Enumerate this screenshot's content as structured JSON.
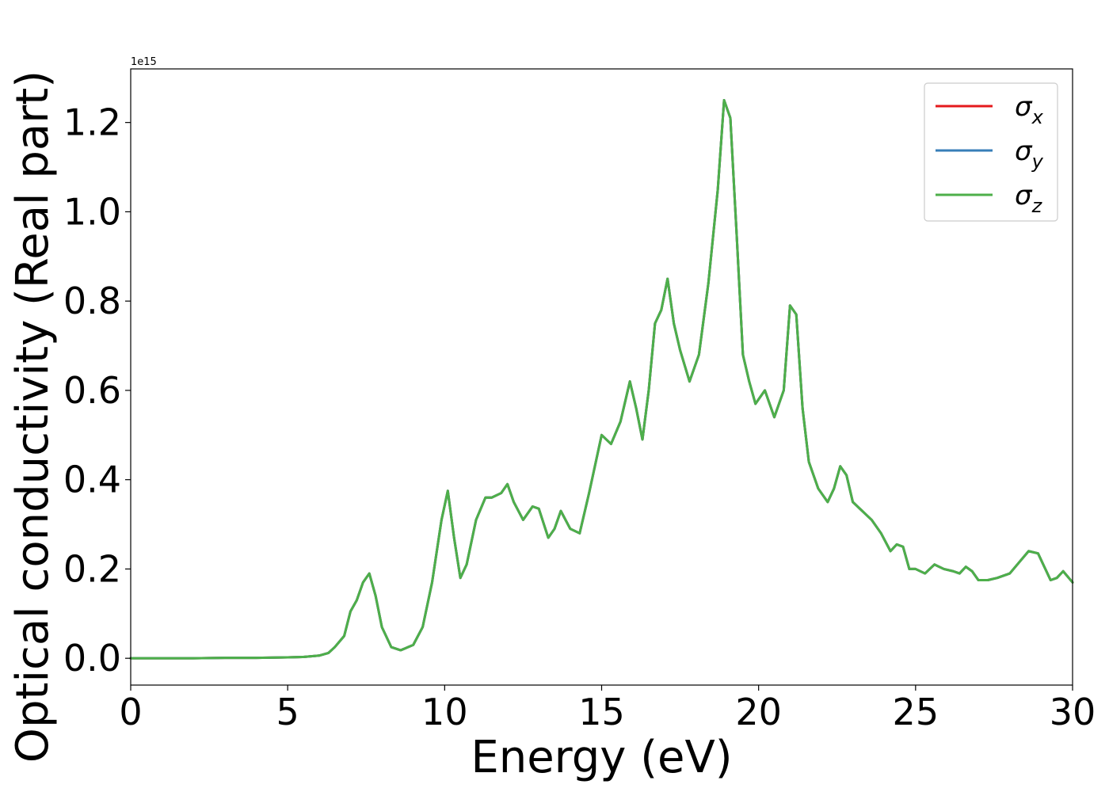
{
  "chart_data": {
    "type": "line",
    "title": "",
    "xlabel": "Energy (eV)",
    "ylabel": "Optical conductivity (Real part)",
    "y_offset_text": "1e15",
    "xlim": [
      0,
      30
    ],
    "ylim": [
      -0.06,
      1.32
    ],
    "y_multiplier": 1000000000000000.0,
    "xticks": [
      0,
      5,
      10,
      15,
      20,
      25,
      30
    ],
    "xtick_labels": [
      "0",
      "5",
      "10",
      "15",
      "20",
      "25",
      "30"
    ],
    "yticks": [
      0.0,
      0.2,
      0.4,
      0.6,
      0.8,
      1.0,
      1.2
    ],
    "ytick_labels": [
      "0.0",
      "0.2",
      "0.4",
      "0.6",
      "0.8",
      "1.0",
      "1.2"
    ],
    "grid": false,
    "legend_position": "top-right",
    "x": [
      0,
      1,
      2,
      3,
      4,
      5,
      5.5,
      6,
      6.3,
      6.5,
      6.8,
      7.0,
      7.2,
      7.4,
      7.6,
      7.8,
      8.0,
      8.3,
      8.6,
      9.0,
      9.3,
      9.6,
      9.9,
      10.1,
      10.3,
      10.5,
      10.7,
      11.0,
      11.3,
      11.5,
      11.8,
      12.0,
      12.2,
      12.5,
      12.8,
      13.0,
      13.3,
      13.5,
      13.7,
      14.0,
      14.3,
      14.6,
      15.0,
      15.3,
      15.6,
      15.9,
      16.1,
      16.3,
      16.5,
      16.7,
      16.9,
      17.1,
      17.3,
      17.5,
      17.8,
      18.1,
      18.4,
      18.7,
      18.9,
      19.1,
      19.3,
      19.5,
      19.7,
      19.9,
      20.2,
      20.5,
      20.8,
      21.0,
      21.2,
      21.4,
      21.6,
      21.9,
      22.2,
      22.4,
      22.6,
      22.8,
      23.0,
      23.3,
      23.6,
      23.9,
      24.2,
      24.4,
      24.6,
      24.8,
      25.0,
      25.3,
      25.6,
      25.9,
      26.2,
      26.4,
      26.6,
      26.8,
      27.0,
      27.3,
      27.6,
      28.0,
      28.3,
      28.6,
      28.9,
      29.1,
      29.3,
      29.5,
      29.7,
      30.0
    ],
    "series": [
      {
        "name": "σ_x",
        "label_main": "σ",
        "label_sub": "x",
        "color": "#e41a1c",
        "values": [
          0,
          0,
          0,
          0.001,
          0.001,
          0.002,
          0.003,
          0.006,
          0.012,
          0.025,
          0.05,
          0.105,
          0.13,
          0.17,
          0.19,
          0.14,
          0.07,
          0.025,
          0.018,
          0.03,
          0.07,
          0.17,
          0.31,
          0.375,
          0.27,
          0.18,
          0.21,
          0.31,
          0.36,
          0.36,
          0.37,
          0.39,
          0.35,
          0.31,
          0.34,
          0.335,
          0.27,
          0.29,
          0.33,
          0.29,
          0.28,
          0.37,
          0.5,
          0.48,
          0.53,
          0.62,
          0.56,
          0.49,
          0.6,
          0.75,
          0.78,
          0.85,
          0.75,
          0.69,
          0.62,
          0.68,
          0.84,
          1.05,
          1.25,
          1.21,
          0.95,
          0.68,
          0.62,
          0.57,
          0.6,
          0.54,
          0.6,
          0.79,
          0.77,
          0.56,
          0.44,
          0.38,
          0.35,
          0.38,
          0.43,
          0.41,
          0.35,
          0.33,
          0.31,
          0.28,
          0.24,
          0.255,
          0.25,
          0.2,
          0.2,
          0.19,
          0.21,
          0.2,
          0.195,
          0.19,
          0.205,
          0.195,
          0.175,
          0.175,
          0.18,
          0.19,
          0.215,
          0.24,
          0.235,
          0.205,
          0.175,
          0.18,
          0.195,
          0.17
        ]
      },
      {
        "name": "σ_y",
        "label_main": "σ",
        "label_sub": "y",
        "color": "#377eb8",
        "values": [
          0,
          0,
          0,
          0.001,
          0.001,
          0.002,
          0.003,
          0.006,
          0.012,
          0.025,
          0.05,
          0.105,
          0.13,
          0.17,
          0.19,
          0.14,
          0.07,
          0.025,
          0.018,
          0.03,
          0.07,
          0.17,
          0.31,
          0.375,
          0.27,
          0.18,
          0.21,
          0.31,
          0.36,
          0.36,
          0.37,
          0.39,
          0.35,
          0.31,
          0.34,
          0.335,
          0.27,
          0.29,
          0.33,
          0.29,
          0.28,
          0.37,
          0.5,
          0.48,
          0.53,
          0.62,
          0.56,
          0.49,
          0.6,
          0.75,
          0.78,
          0.85,
          0.75,
          0.69,
          0.62,
          0.68,
          0.84,
          1.05,
          1.25,
          1.21,
          0.95,
          0.68,
          0.62,
          0.57,
          0.6,
          0.54,
          0.6,
          0.79,
          0.77,
          0.56,
          0.44,
          0.38,
          0.35,
          0.38,
          0.43,
          0.41,
          0.35,
          0.33,
          0.31,
          0.28,
          0.24,
          0.255,
          0.25,
          0.2,
          0.2,
          0.19,
          0.21,
          0.2,
          0.195,
          0.19,
          0.205,
          0.195,
          0.175,
          0.175,
          0.18,
          0.19,
          0.215,
          0.24,
          0.235,
          0.205,
          0.175,
          0.18,
          0.195,
          0.17
        ]
      },
      {
        "name": "σ_z",
        "label_main": "σ",
        "label_sub": "z",
        "color": "#4daf4a",
        "values": [
          0,
          0,
          0,
          0.001,
          0.001,
          0.002,
          0.003,
          0.006,
          0.012,
          0.025,
          0.05,
          0.105,
          0.13,
          0.17,
          0.19,
          0.14,
          0.07,
          0.025,
          0.018,
          0.03,
          0.07,
          0.17,
          0.31,
          0.375,
          0.27,
          0.18,
          0.21,
          0.31,
          0.36,
          0.36,
          0.37,
          0.39,
          0.35,
          0.31,
          0.34,
          0.335,
          0.27,
          0.29,
          0.33,
          0.29,
          0.28,
          0.37,
          0.5,
          0.48,
          0.53,
          0.62,
          0.56,
          0.49,
          0.6,
          0.75,
          0.78,
          0.85,
          0.75,
          0.69,
          0.62,
          0.68,
          0.84,
          1.05,
          1.25,
          1.21,
          0.95,
          0.68,
          0.62,
          0.57,
          0.6,
          0.54,
          0.6,
          0.79,
          0.77,
          0.56,
          0.44,
          0.38,
          0.35,
          0.38,
          0.43,
          0.41,
          0.35,
          0.33,
          0.31,
          0.28,
          0.24,
          0.255,
          0.25,
          0.2,
          0.2,
          0.19,
          0.21,
          0.2,
          0.195,
          0.19,
          0.205,
          0.195,
          0.175,
          0.175,
          0.18,
          0.19,
          0.215,
          0.24,
          0.235,
          0.205,
          0.175,
          0.18,
          0.195,
          0.17
        ]
      }
    ]
  }
}
